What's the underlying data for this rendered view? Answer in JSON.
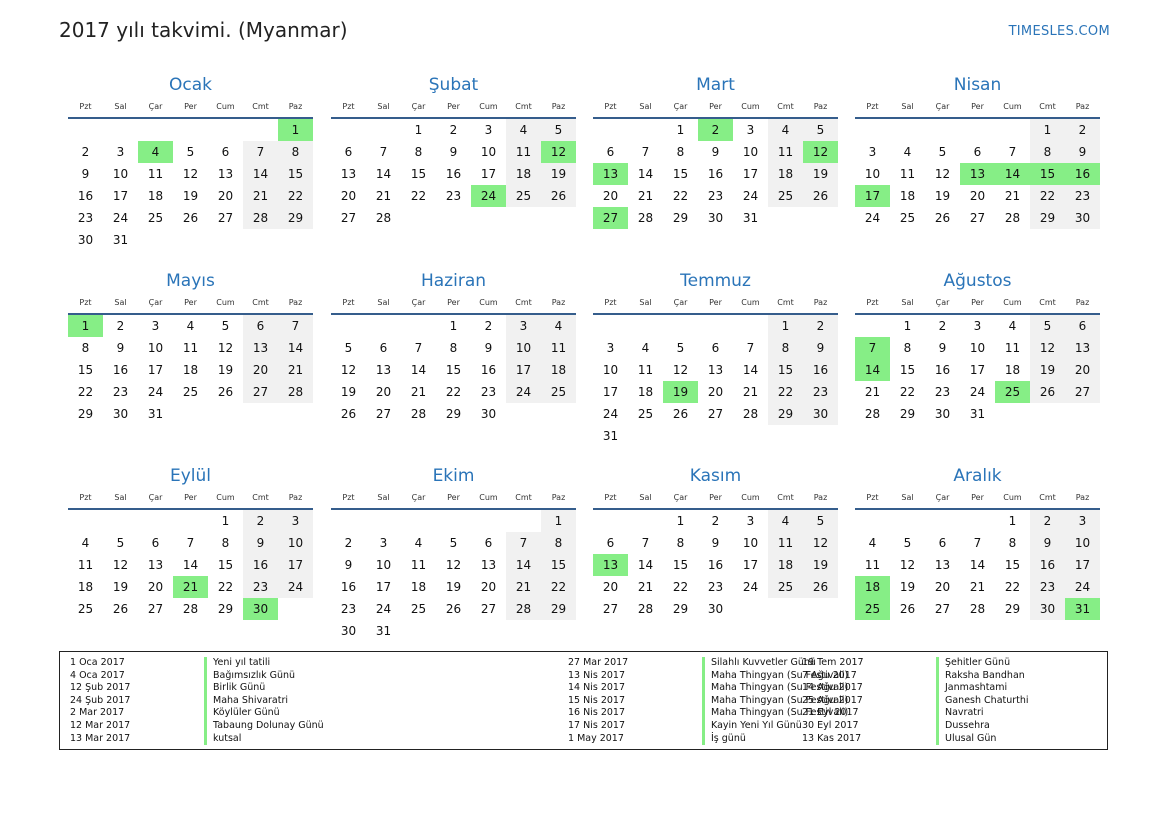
{
  "page": {
    "title": "2017 yılı takvimi. (Myanmar)",
    "site": "TIMESLES.COM",
    "colors": {
      "accent": "#2a74b8",
      "holiday": "#86ee86",
      "weekend": "#f1f1f1",
      "rule": "#355d8c"
    }
  },
  "weekdays": [
    "Pzt",
    "Sal",
    "Çar",
    "Per",
    "Cum",
    "Cmt",
    "Paz"
  ],
  "months": [
    {
      "name": "Ocak",
      "offset": 6,
      "days": 31,
      "holidays": [
        1,
        4
      ]
    },
    {
      "name": "Şubat",
      "offset": 2,
      "days": 28,
      "holidays": [
        12,
        24
      ]
    },
    {
      "name": "Mart",
      "offset": 2,
      "days": 31,
      "holidays": [
        2,
        12,
        13,
        27
      ]
    },
    {
      "name": "Nisan",
      "offset": 5,
      "days": 30,
      "holidays": [
        13,
        14,
        15,
        16,
        17
      ]
    },
    {
      "name": "Mayıs",
      "offset": 0,
      "days": 31,
      "holidays": [
        1
      ]
    },
    {
      "name": "Haziran",
      "offset": 3,
      "days": 30,
      "holidays": []
    },
    {
      "name": "Temmuz",
      "offset": 5,
      "days": 31,
      "holidays": [
        19
      ]
    },
    {
      "name": "Ağustos",
      "offset": 1,
      "days": 31,
      "holidays": [
        7,
        14,
        25
      ]
    },
    {
      "name": "Eylül",
      "offset": 4,
      "days": 30,
      "holidays": [
        21,
        30
      ]
    },
    {
      "name": "Ekim",
      "offset": 6,
      "days": 31,
      "holidays": []
    },
    {
      "name": "Kasım",
      "offset": 2,
      "days": 30,
      "holidays": [
        13
      ]
    },
    {
      "name": "Aralık",
      "offset": 4,
      "days": 31,
      "holidays": [
        18,
        25,
        31
      ]
    }
  ],
  "holiday_list": [
    [
      {
        "date": "1 Oca 2017",
        "name": "Yeni yıl tatili"
      },
      {
        "date": "4 Oca 2017",
        "name": "Bağımsızlık Günü"
      },
      {
        "date": "12 Şub 2017",
        "name": "Birlik Günü"
      },
      {
        "date": "24 Şub 2017",
        "name": "Maha Shivaratri"
      },
      {
        "date": "2 Mar 2017",
        "name": "Köylüler Günü"
      },
      {
        "date": "12 Mar 2017",
        "name": "Tabaung Dolunay Günü"
      },
      {
        "date": "13 Mar 2017",
        "name": "kutsal"
      }
    ],
    [
      {
        "date": "27 Mar 2017",
        "name": "Silahlı Kuvvetler Günü"
      },
      {
        "date": "13 Nis 2017",
        "name": "Maha Thingyan (Su Festivali)"
      },
      {
        "date": "14 Nis 2017",
        "name": "Maha Thingyan (Su Festivali)"
      },
      {
        "date": "15 Nis 2017",
        "name": "Maha Thingyan (Su Festivali)"
      },
      {
        "date": "16 Nis 2017",
        "name": "Maha Thingyan (Su Festivali)"
      },
      {
        "date": "17 Nis 2017",
        "name": "Kayin Yeni Yıl Günü"
      },
      {
        "date": "1 May 2017",
        "name": "İş günü"
      }
    ],
    [
      {
        "date": "19 Tem 2017",
        "name": "Şehitler Günü"
      },
      {
        "date": "7 Ağu 2017",
        "name": "Raksha Bandhan"
      },
      {
        "date": "14 Ağu 2017",
        "name": "Janmashtami"
      },
      {
        "date": "25 Ağu 2017",
        "name": "Ganesh Chaturthi"
      },
      {
        "date": "21 Eyl 2017",
        "name": "Navratri"
      },
      {
        "date": "30 Eyl 2017",
        "name": "Dussehra"
      },
      {
        "date": "13 Kas 2017",
        "name": "Ulusal Gün"
      }
    ]
  ]
}
